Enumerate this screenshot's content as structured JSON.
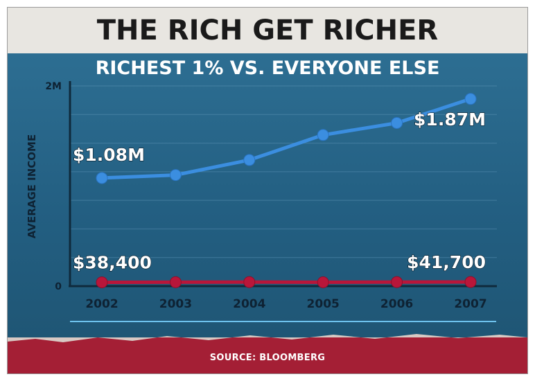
{
  "title": "THE RICH GET RICHER",
  "source": "SOURCE: BLOOMBERG",
  "colors": {
    "top_series": "#3b8ee0",
    "bottom_series": "#b8163a",
    "panel": "#235f82",
    "banner": "#a41f35"
  },
  "chart_data": {
    "type": "line",
    "title": "RICHEST 1% VS. EVERYONE ELSE",
    "ylabel": "AVERAGE INCOME",
    "xlabel": "",
    "ylim": [
      0,
      2000000
    ],
    "y_ticks": [
      {
        "value": 0,
        "label": "0"
      },
      {
        "value": 2000000,
        "label": "2M"
      }
    ],
    "categories": [
      "2002",
      "2003",
      "2004",
      "2005",
      "2006",
      "2007"
    ],
    "grid": true,
    "series": [
      {
        "name": "",
        "color": "#3b8ee0",
        "values": [
          1080000,
          1110000,
          1260000,
          1510000,
          1630000,
          1870000
        ]
      },
      {
        "name": "",
        "color": "#b8163a",
        "values": [
          38400,
          39500,
          40800,
          39000,
          40700,
          41700
        ]
      }
    ],
    "annotations": [
      {
        "series": 0,
        "index": 0,
        "text": "$1.08M"
      },
      {
        "series": 0,
        "index": 5,
        "text": "$1.87M"
      },
      {
        "series": 1,
        "index": 0,
        "text": "$38,400"
      },
      {
        "series": 1,
        "index": 5,
        "text": "$41,700"
      }
    ]
  }
}
